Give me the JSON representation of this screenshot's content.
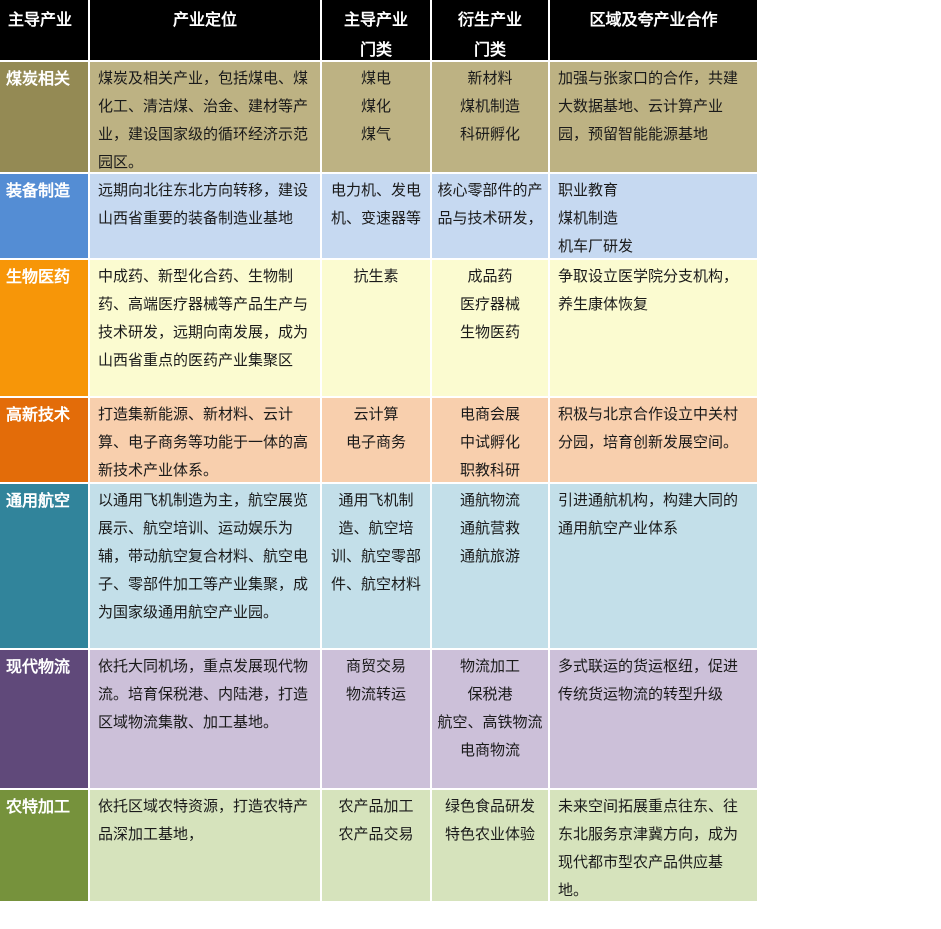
{
  "table": {
    "header": {
      "columns": [
        "主导产业",
        "产业定位",
        "主导产业\n门类",
        "衍生产业\n门类",
        "区域及夸产业合作"
      ],
      "bg_color": "#000000",
      "text_color": "#ffffff"
    },
    "rows": [
      {
        "industry": "煤炭相关",
        "positioning": "煤炭及相关产业，包括煤电、煤化工、清洁煤、治金、建材等产业，建设国家级的循环经济示范园区。",
        "leading_categories": "煤电\n煤化\n煤气",
        "derived_categories": "新材料\n煤机制造\n科研孵化",
        "cooperation": "加强与张家口的合作，共建大数据基地、云计算产业园，预留智能能源基地",
        "colors": {
          "header": "#948a54",
          "tint": "#bdb283"
        }
      },
      {
        "industry": "装备制造",
        "positioning": "远期向北往东北方向转移，建设山西省重要的装备制造业基地",
        "leading_categories": "电力机、发电机、变速器等",
        "derived_categories": "核心零部件的产品与技术研发，",
        "cooperation": "职业教育\n煤机制造\n机车厂研发",
        "colors": {
          "header": "#548dd4",
          "tint": "#c6d9f1"
        }
      },
      {
        "industry": "生物医药",
        "positioning": "中成药、新型化合药、生物制药、高端医疗器械等产品生产与技术研发，远期向南发展，成为山西省重点的医药产业集聚区",
        "leading_categories": "抗生素",
        "derived_categories": "成品药\n医疗器械\n生物医药",
        "cooperation": "争取设立医学院分支机构，养生康体恢复",
        "colors": {
          "header": "#f79608",
          "tint": "#fbfbd0"
        }
      },
      {
        "industry": "高新技术",
        "positioning": "打造集新能源、新材料、云计算、电子商务等功能于一体的高新技术产业体系。",
        "leading_categories": "云计算\n电子商务",
        "derived_categories": "电商会展\n中试孵化\n职教科研",
        "cooperation": "积极与北京合作设立中关村分园，培育创新发展空间。",
        "colors": {
          "header": "#e36c09",
          "tint": "#f8cfad"
        }
      },
      {
        "industry": "通用航空",
        "positioning": "以通用飞机制造为主，航空展览展示、航空培训、运动娱乐为辅，带动航空复合材料、航空电子、零部件加工等产业集聚，成为国家级通用航空产业园。",
        "leading_categories": "通用飞机制造、航空培训、航空零部件、航空材料",
        "derived_categories": "通航物流\n通航营救\n通航旅游",
        "cooperation": "引进通航机构，构建大同的通用航空产业体系",
        "colors": {
          "header": "#31849b",
          "tint": "#c3dfe9"
        }
      },
      {
        "industry": "现代物流",
        "positioning": "依托大同机场，重点发展现代物流。培育保税港、内陆港，打造区域物流集散、加工基地。",
        "leading_categories": "商贸交易\n物流转运",
        "derived_categories": "物流加工\n保税港\n航空、高铁物流\n电商物流",
        "cooperation": "多式联运的货运枢纽，促进传统货运物流的转型升级",
        "colors": {
          "header": "#60497a",
          "tint": "#ccc0d9"
        }
      },
      {
        "industry": "农特加工",
        "positioning": "依托区域农特资源，打造农特产品深加工基地，",
        "leading_categories": "农产品加工\n农产品交易",
        "derived_categories": "绿色食品研发\n特色农业体验",
        "cooperation": "未来空间拓展重点往东、往东北服务京津冀方向，成为现代都市型农产品供应基地。",
        "colors": {
          "header": "#76923c",
          "tint": "#d6e3bc"
        }
      }
    ]
  }
}
